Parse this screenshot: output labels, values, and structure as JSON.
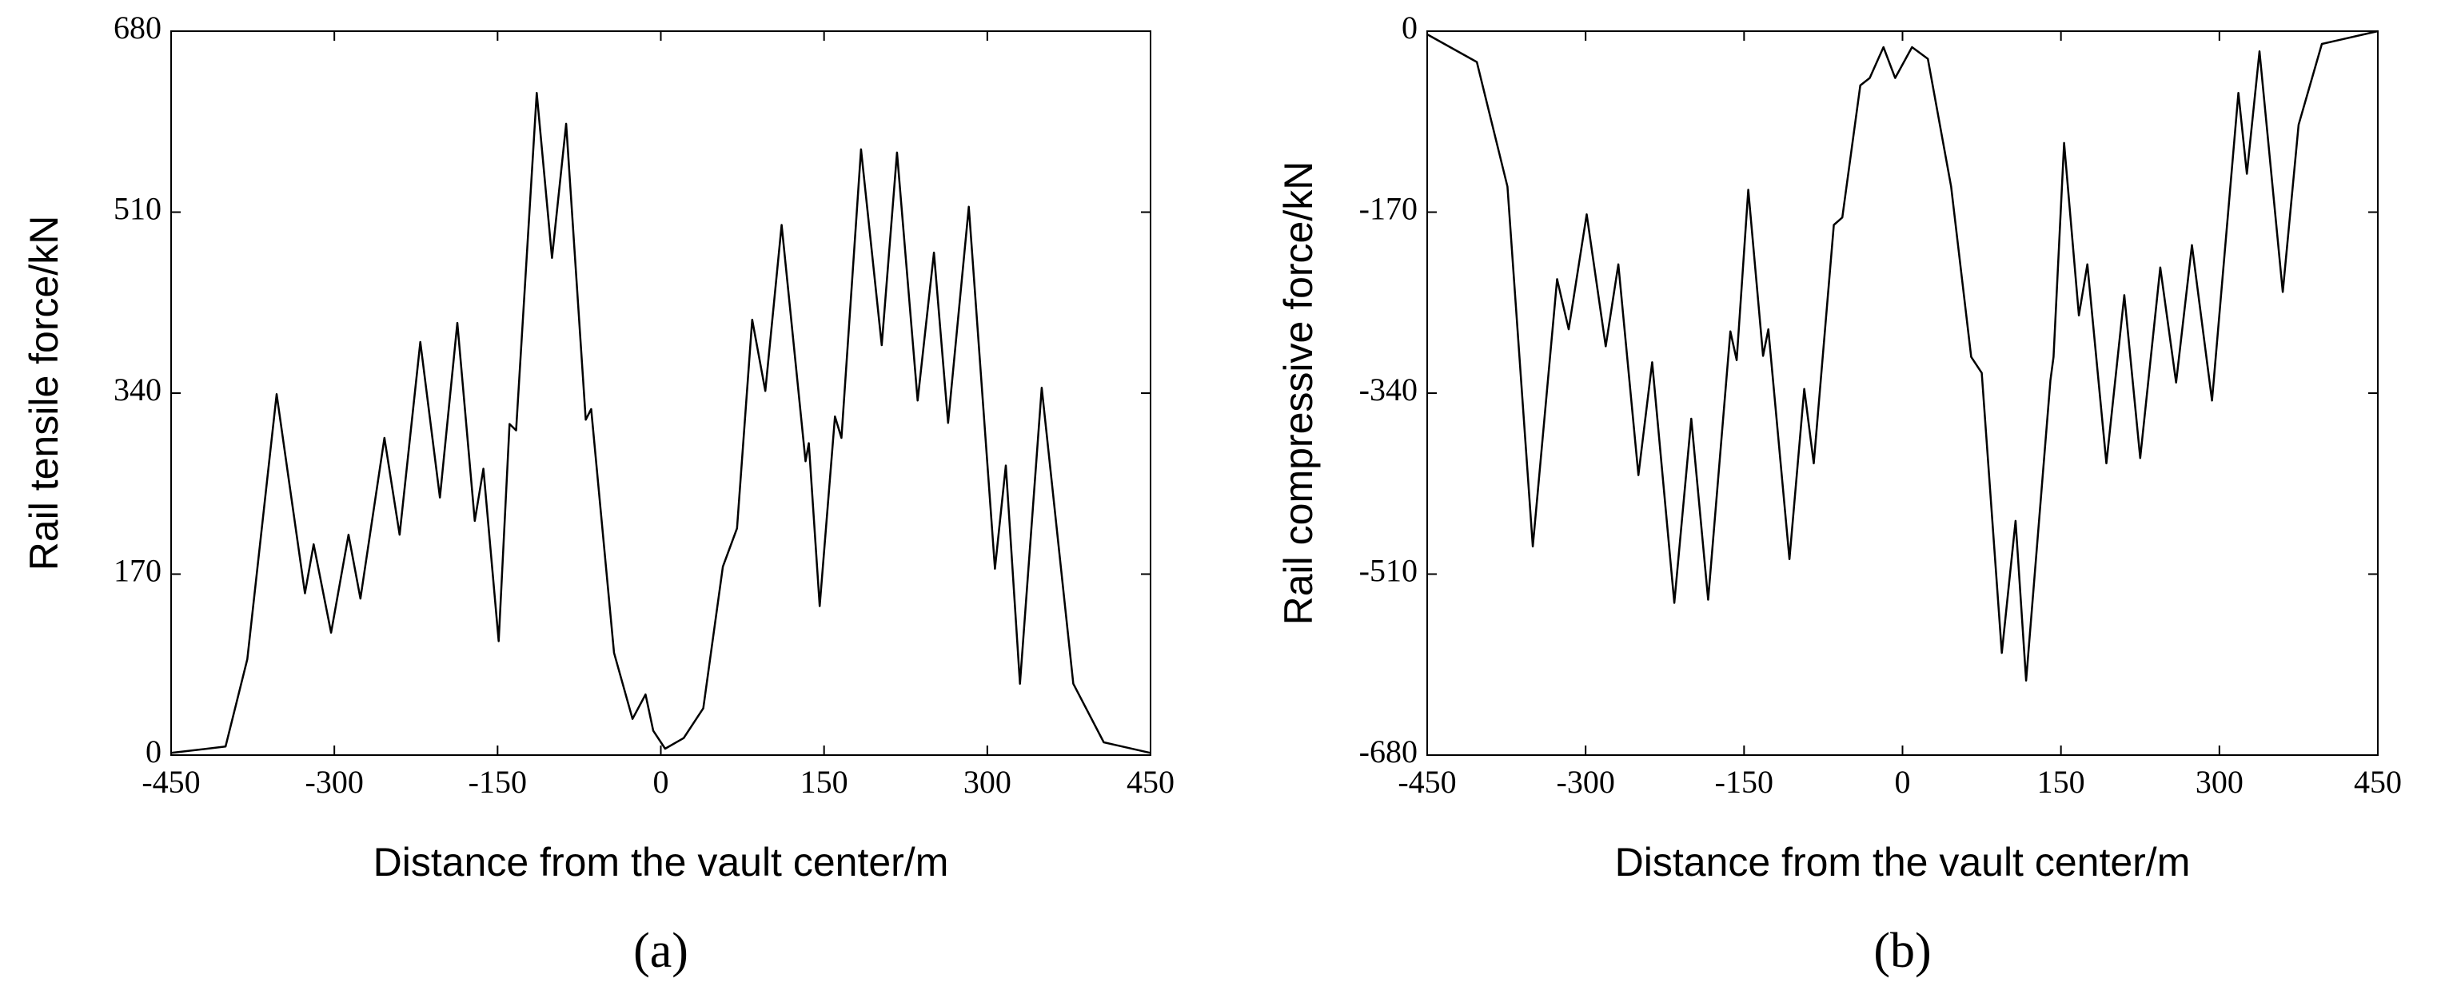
{
  "chart_data": [
    {
      "type": "line",
      "xlabel": "Distance from the vault center/m",
      "ylabel": "Rail tensile force/kN",
      "caption": "(a)",
      "xlim": [
        -450,
        450
      ],
      "xticks": [
        -450,
        -300,
        -150,
        0,
        150,
        300,
        450
      ],
      "ylim": [
        0,
        680
      ],
      "yticks": [
        0,
        170,
        340,
        510,
        680
      ],
      "color": "#000000",
      "x": [
        -450,
        -400,
        -380,
        -353,
        -327,
        -319,
        -303,
        -287,
        -276,
        -254,
        -240,
        -221,
        -203,
        -187,
        -171,
        -163,
        -149,
        -139,
        -133,
        -114,
        -100,
        -87,
        -69,
        -64,
        -43,
        -26,
        -14,
        -7,
        4,
        21,
        39,
        57,
        70,
        84,
        96,
        111,
        133,
        136,
        146,
        160,
        166,
        184,
        203,
        217,
        236,
        251,
        264,
        283,
        307,
        317,
        330,
        350,
        379,
        407,
        450
      ],
      "values": [
        2,
        8,
        90,
        339,
        152,
        198,
        115,
        207,
        147,
        298,
        207,
        388,
        242,
        406,
        220,
        269,
        107,
        311,
        305,
        622,
        467,
        593,
        315,
        325,
        96,
        34,
        57,
        23,
        6,
        16,
        44,
        177,
        213,
        409,
        342,
        498,
        276,
        293,
        140,
        318,
        298,
        569,
        385,
        566,
        333,
        472,
        312,
        515,
        175,
        272,
        67,
        345,
        67,
        12,
        2
      ]
    },
    {
      "type": "line",
      "xlabel": "Distance from the vault center/m",
      "ylabel": "Rail compressive force/kN",
      "caption": "(b)",
      "xlim": [
        -450,
        450
      ],
      "xticks": [
        -450,
        -300,
        -150,
        0,
        150,
        300,
        450
      ],
      "ylim": [
        -680,
        0
      ],
      "yticks": [
        -680,
        -510,
        -340,
        -170,
        0
      ],
      "color": "#000000",
      "x": [
        -450,
        -403,
        -374,
        -350,
        -327,
        -316,
        -299,
        -281,
        -269,
        -250,
        -237,
        -216,
        -200,
        -184,
        -163,
        -157,
        -146,
        -132,
        -127,
        -107,
        -93,
        -84,
        -65,
        -57,
        -40,
        -31,
        -18,
        -7,
        9,
        24,
        46,
        65,
        75,
        94,
        107,
        117,
        140,
        143,
        153,
        167,
        175,
        193,
        210,
        225,
        244,
        259,
        274,
        293,
        318,
        326,
        338,
        360,
        375,
        397,
        450
      ],
      "values": [
        -3,
        -29,
        -146,
        -484,
        -233,
        -280,
        -172,
        -296,
        -219,
        -417,
        -311,
        -537,
        -364,
        -534,
        -282,
        -309,
        -149,
        -305,
        -280,
        -496,
        -336,
        -406,
        -182,
        -175,
        -51,
        -44,
        -15,
        -44,
        -15,
        -26,
        -146,
        -306,
        -321,
        -584,
        -460,
        -610,
        -328,
        -306,
        -105,
        -267,
        -219,
        -406,
        -248,
        -401,
        -222,
        -330,
        -201,
        -347,
        -58,
        -134,
        -19,
        -245,
        -88,
        -12,
        0
      ]
    }
  ]
}
